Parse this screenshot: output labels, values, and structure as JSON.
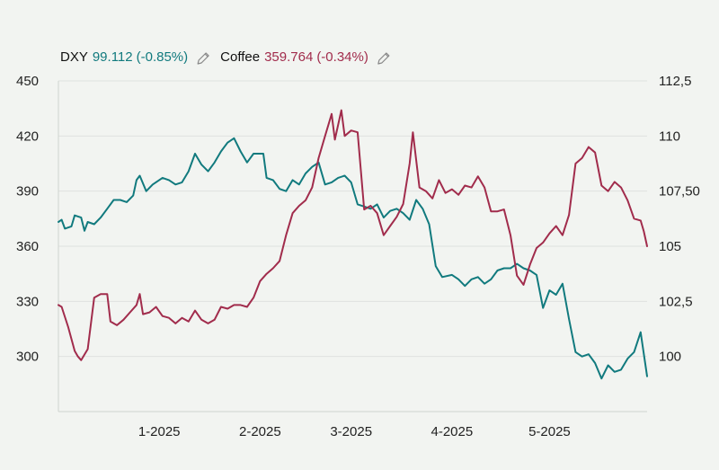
{
  "chart_data": {
    "type": "line",
    "dual_axis": true,
    "grid": "horizontal",
    "legend_placement": "top-left",
    "colors": {
      "dxy": "#117a7e",
      "coffee": "#a12c4c",
      "axis": "#222222",
      "grid": "#dfe2df"
    },
    "legend": [
      {
        "name": "DXY",
        "value": "99.112",
        "change": "(-0.85%)",
        "color": "#117a7e",
        "icon": "pencil-icon"
      },
      {
        "name": "Coffee",
        "value": "359.764",
        "change": "(-0.34%)",
        "color": "#a12c4c",
        "icon": "pencil-icon"
      }
    ],
    "x_axis": {
      "range": [
        "2024-12-01",
        "2025-05-31"
      ],
      "ticks": [
        {
          "label": "1-2025",
          "date": "2025-01-01"
        },
        {
          "label": "2-2025",
          "date": "2025-02-01"
        },
        {
          "label": "3-2025",
          "date": "2025-03-01"
        },
        {
          "label": "4-2025",
          "date": "2025-04-01"
        },
        {
          "label": "5-2025",
          "date": "2025-05-01"
        }
      ]
    },
    "y_left": {
      "series": "Coffee",
      "range": [
        270,
        450
      ],
      "ticks": [
        {
          "value": 300,
          "label": "300"
        },
        {
          "value": 330,
          "label": "330"
        },
        {
          "value": 360,
          "label": "360"
        },
        {
          "value": 390,
          "label": "390"
        },
        {
          "value": 420,
          "label": "420"
        },
        {
          "value": 450,
          "label": "450"
        }
      ]
    },
    "y_right": {
      "series": "DXY",
      "range": [
        97.5,
        112.5
      ],
      "ticks": [
        {
          "value": 100,
          "label": "100"
        },
        {
          "value": 102.5,
          "label": "102,5"
        },
        {
          "value": 105,
          "label": "105"
        },
        {
          "value": 107.5,
          "label": "107,50"
        },
        {
          "value": 110,
          "label": "110"
        },
        {
          "value": 112.5,
          "label": "112,5"
        }
      ]
    },
    "series": [
      {
        "name": "DXY",
        "axis": "right",
        "color": "#117a7e",
        "points": [
          [
            "2024-12-01",
            106.1
          ],
          [
            "2024-12-02",
            106.2
          ],
          [
            "2024-12-03",
            105.8
          ],
          [
            "2024-12-05",
            105.9
          ],
          [
            "2024-12-06",
            106.4
          ],
          [
            "2024-12-08",
            106.3
          ],
          [
            "2024-12-09",
            105.7
          ],
          [
            "2024-12-10",
            106.1
          ],
          [
            "2024-12-12",
            106.0
          ],
          [
            "2024-12-14",
            106.3
          ],
          [
            "2024-12-16",
            106.7
          ],
          [
            "2024-12-18",
            107.1
          ],
          [
            "2024-12-20",
            107.1
          ],
          [
            "2024-12-22",
            107.0
          ],
          [
            "2024-12-24",
            107.3
          ],
          [
            "2024-12-25",
            108.0
          ],
          [
            "2024-12-26",
            108.2
          ],
          [
            "2024-12-28",
            107.5
          ],
          [
            "2024-12-30",
            107.8
          ],
          [
            "2025-01-02",
            108.1
          ],
          [
            "2025-01-04",
            108.0
          ],
          [
            "2025-01-06",
            107.8
          ],
          [
            "2025-01-08",
            107.9
          ],
          [
            "2025-01-10",
            108.4
          ],
          [
            "2025-01-12",
            109.2
          ],
          [
            "2025-01-14",
            108.7
          ],
          [
            "2025-01-16",
            108.4
          ],
          [
            "2025-01-18",
            108.8
          ],
          [
            "2025-01-20",
            109.3
          ],
          [
            "2025-01-22",
            109.7
          ],
          [
            "2025-01-24",
            109.9
          ],
          [
            "2025-01-26",
            109.3
          ],
          [
            "2025-01-28",
            108.8
          ],
          [
            "2025-01-30",
            109.2
          ],
          [
            "2025-02-02",
            109.2
          ],
          [
            "2025-02-03",
            108.1
          ],
          [
            "2025-02-05",
            108.0
          ],
          [
            "2025-02-07",
            107.6
          ],
          [
            "2025-02-09",
            107.5
          ],
          [
            "2025-02-11",
            108.0
          ],
          [
            "2025-02-13",
            107.8
          ],
          [
            "2025-02-15",
            108.3
          ],
          [
            "2025-02-17",
            108.6
          ],
          [
            "2025-02-19",
            108.8
          ],
          [
            "2025-02-21",
            107.8
          ],
          [
            "2025-02-23",
            107.9
          ],
          [
            "2025-02-25",
            108.1
          ],
          [
            "2025-02-27",
            108.2
          ],
          [
            "2025-03-01",
            107.9
          ],
          [
            "2025-03-03",
            106.9
          ],
          [
            "2025-03-05",
            106.8
          ],
          [
            "2025-03-07",
            106.7
          ],
          [
            "2025-03-09",
            106.9
          ],
          [
            "2025-03-11",
            106.3
          ],
          [
            "2025-03-13",
            106.6
          ],
          [
            "2025-03-15",
            106.7
          ],
          [
            "2025-03-17",
            106.5
          ],
          [
            "2025-03-19",
            106.2
          ],
          [
            "2025-03-21",
            107.1
          ],
          [
            "2025-03-23",
            106.7
          ],
          [
            "2025-03-25",
            106.0
          ],
          [
            "2025-03-27",
            104.1
          ],
          [
            "2025-03-29",
            103.6
          ],
          [
            "2025-04-01",
            103.7
          ],
          [
            "2025-04-03",
            103.5
          ],
          [
            "2025-04-05",
            103.2
          ],
          [
            "2025-04-07",
            103.5
          ],
          [
            "2025-04-09",
            103.6
          ],
          [
            "2025-04-11",
            103.3
          ],
          [
            "2025-04-13",
            103.5
          ],
          [
            "2025-04-15",
            103.9
          ],
          [
            "2025-04-17",
            104.0
          ],
          [
            "2025-04-19",
            104.0
          ],
          [
            "2025-04-21",
            104.2
          ],
          [
            "2025-04-23",
            104.0
          ],
          [
            "2025-04-25",
            103.9
          ],
          [
            "2025-04-27",
            103.7
          ],
          [
            "2025-04-29",
            102.2
          ],
          [
            "2025-05-01",
            103.0
          ],
          [
            "2025-05-03",
            102.8
          ],
          [
            "2025-05-05",
            103.3
          ],
          [
            "2025-05-07",
            101.7
          ],
          [
            "2025-05-09",
            100.2
          ],
          [
            "2025-05-11",
            100.0
          ],
          [
            "2025-05-13",
            100.1
          ],
          [
            "2025-05-15",
            99.7
          ],
          [
            "2025-05-17",
            99.0
          ],
          [
            "2025-05-19",
            99.6
          ],
          [
            "2025-05-21",
            99.3
          ],
          [
            "2025-05-23",
            99.4
          ],
          [
            "2025-05-25",
            99.9
          ],
          [
            "2025-05-27",
            100.2
          ],
          [
            "2025-05-29",
            101.1
          ],
          [
            "2025-05-30",
            100.1
          ],
          [
            "2025-05-31",
            99.1
          ]
        ]
      },
      {
        "name": "Coffee",
        "axis": "left",
        "color": "#a12c4c",
        "points": [
          [
            "2024-12-01",
            328
          ],
          [
            "2024-12-02",
            327
          ],
          [
            "2024-12-04",
            316
          ],
          [
            "2024-12-06",
            303
          ],
          [
            "2024-12-07",
            300
          ],
          [
            "2024-12-08",
            298
          ],
          [
            "2024-12-10",
            304
          ],
          [
            "2024-12-12",
            332
          ],
          [
            "2024-12-14",
            334
          ],
          [
            "2024-12-16",
            334
          ],
          [
            "2024-12-17",
            319
          ],
          [
            "2024-12-19",
            317
          ],
          [
            "2024-12-21",
            320
          ],
          [
            "2024-12-23",
            324
          ],
          [
            "2024-12-25",
            328
          ],
          [
            "2024-12-26",
            334
          ],
          [
            "2024-12-27",
            323
          ],
          [
            "2024-12-29",
            324
          ],
          [
            "2024-12-31",
            327
          ],
          [
            "2025-01-02",
            322
          ],
          [
            "2025-01-04",
            321
          ],
          [
            "2025-01-06",
            318
          ],
          [
            "2025-01-08",
            321
          ],
          [
            "2025-01-10",
            319
          ],
          [
            "2025-01-12",
            325
          ],
          [
            "2025-01-14",
            320
          ],
          [
            "2025-01-16",
            318
          ],
          [
            "2025-01-18",
            320
          ],
          [
            "2025-01-20",
            327
          ],
          [
            "2025-01-22",
            326
          ],
          [
            "2025-01-24",
            328
          ],
          [
            "2025-01-26",
            328
          ],
          [
            "2025-01-28",
            327
          ],
          [
            "2025-01-30",
            332
          ],
          [
            "2025-02-01",
            341
          ],
          [
            "2025-02-03",
            345
          ],
          [
            "2025-02-05",
            348
          ],
          [
            "2025-02-07",
            352
          ],
          [
            "2025-02-09",
            366
          ],
          [
            "2025-02-11",
            378
          ],
          [
            "2025-02-13",
            382
          ],
          [
            "2025-02-15",
            385
          ],
          [
            "2025-02-17",
            392
          ],
          [
            "2025-02-19",
            408
          ],
          [
            "2025-02-21",
            420
          ],
          [
            "2025-02-23",
            432
          ],
          [
            "2025-02-24",
            418
          ],
          [
            "2025-02-26",
            434
          ],
          [
            "2025-02-27",
            420
          ],
          [
            "2025-03-01",
            423
          ],
          [
            "2025-03-03",
            422
          ],
          [
            "2025-03-05",
            380
          ],
          [
            "2025-03-07",
            382
          ],
          [
            "2025-03-09",
            378
          ],
          [
            "2025-03-11",
            366
          ],
          [
            "2025-03-13",
            371
          ],
          [
            "2025-03-15",
            376
          ],
          [
            "2025-03-17",
            383
          ],
          [
            "2025-03-19",
            405
          ],
          [
            "2025-03-20",
            422
          ],
          [
            "2025-03-22",
            392
          ],
          [
            "2025-03-24",
            390
          ],
          [
            "2025-03-26",
            386
          ],
          [
            "2025-03-28",
            396
          ],
          [
            "2025-03-30",
            389
          ],
          [
            "2025-04-01",
            391
          ],
          [
            "2025-04-03",
            388
          ],
          [
            "2025-04-05",
            393
          ],
          [
            "2025-04-07",
            392
          ],
          [
            "2025-04-09",
            398
          ],
          [
            "2025-04-11",
            392
          ],
          [
            "2025-04-13",
            379
          ],
          [
            "2025-04-15",
            379
          ],
          [
            "2025-04-17",
            380
          ],
          [
            "2025-04-19",
            366
          ],
          [
            "2025-04-21",
            344
          ],
          [
            "2025-04-23",
            339
          ],
          [
            "2025-04-25",
            350
          ],
          [
            "2025-04-27",
            359
          ],
          [
            "2025-04-29",
            362
          ],
          [
            "2025-05-01",
            367
          ],
          [
            "2025-05-03",
            371
          ],
          [
            "2025-05-05",
            366
          ],
          [
            "2025-05-07",
            377
          ],
          [
            "2025-05-09",
            405
          ],
          [
            "2025-05-11",
            408
          ],
          [
            "2025-05-13",
            414
          ],
          [
            "2025-05-15",
            411
          ],
          [
            "2025-05-17",
            393
          ],
          [
            "2025-05-19",
            390
          ],
          [
            "2025-05-21",
            395
          ],
          [
            "2025-05-23",
            392
          ],
          [
            "2025-05-25",
            385
          ],
          [
            "2025-05-27",
            375
          ],
          [
            "2025-05-29",
            374
          ],
          [
            "2025-05-30",
            368
          ],
          [
            "2025-05-31",
            360
          ]
        ]
      }
    ]
  }
}
